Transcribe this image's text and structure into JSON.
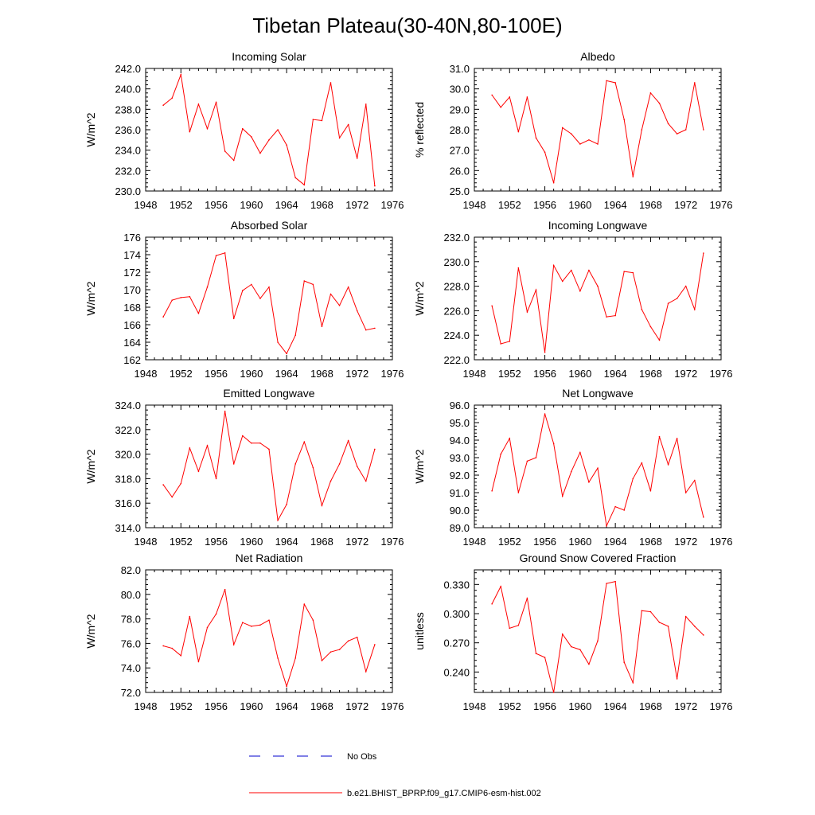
{
  "figure": {
    "title": "Tibetan Plateau(30-40N,80-100E)"
  },
  "legend": {
    "items": [
      {
        "label": "No Obs",
        "color": "#0000cc",
        "dash": "dashed"
      },
      {
        "label": "b.e21.BHIST_BPRP.f09_g17.CMIP6-esm-hist.002",
        "color": "#ff0000",
        "dash": "solid"
      }
    ]
  },
  "chart_data": [
    {
      "type": "line",
      "title": "Incoming Solar",
      "xlabel": "",
      "ylabel": "W/m^2",
      "xlim": [
        1948,
        1976
      ],
      "ylim": [
        230,
        242
      ],
      "xticks": [
        1948,
        1952,
        1956,
        1960,
        1964,
        1968,
        1972,
        1976
      ],
      "yticks": [
        "230.0",
        "232.0",
        "234.0",
        "236.0",
        "238.0",
        "240.0",
        "242.0"
      ],
      "series": [
        {
          "name": "b.e21.BHIST_BPRP.f09_g17.CMIP6-esm-hist.002",
          "color": "#ff0000",
          "x": [
            1950,
            1951,
            1952,
            1953,
            1954,
            1955,
            1956,
            1957,
            1958,
            1959,
            1960,
            1961,
            1962,
            1963,
            1964,
            1965,
            1966,
            1967,
            1968,
            1969,
            1970,
            1971,
            1972,
            1973,
            1974
          ],
          "values": [
            238.4,
            239.1,
            241.4,
            235.8,
            238.5,
            236.1,
            238.7,
            233.9,
            233.0,
            236.1,
            235.3,
            233.7,
            235.0,
            236.0,
            234.5,
            231.3,
            230.6,
            237.0,
            236.9,
            240.6,
            235.2,
            236.5,
            233.2,
            238.5,
            230.5
          ]
        }
      ]
    },
    {
      "type": "line",
      "title": "Albedo",
      "xlabel": "",
      "ylabel": "% reflected",
      "xlim": [
        1948,
        1976
      ],
      "ylim": [
        25,
        31
      ],
      "xticks": [
        1948,
        1952,
        1956,
        1960,
        1964,
        1968,
        1972,
        1976
      ],
      "yticks": [
        "25.0",
        "26.0",
        "27.0",
        "28.0",
        "29.0",
        "30.0",
        "31.0"
      ],
      "series": [
        {
          "name": "b.e21.BHIST_BPRP.f09_g17.CMIP6-esm-hist.002",
          "color": "#ff0000",
          "x": [
            1950,
            1951,
            1952,
            1953,
            1954,
            1955,
            1956,
            1957,
            1958,
            1959,
            1960,
            1961,
            1962,
            1963,
            1964,
            1965,
            1966,
            1967,
            1968,
            1969,
            1970,
            1971,
            1972,
            1973,
            1974
          ],
          "values": [
            29.7,
            29.1,
            29.6,
            27.9,
            29.6,
            27.6,
            26.9,
            25.4,
            28.1,
            27.8,
            27.3,
            27.5,
            27.3,
            30.4,
            30.3,
            28.5,
            25.7,
            28.0,
            29.8,
            29.3,
            28.3,
            27.8,
            28.0,
            30.3,
            28.0
          ]
        }
      ]
    },
    {
      "type": "line",
      "title": "Absorbed Solar",
      "xlabel": "",
      "ylabel": "W/m^2",
      "xlim": [
        1948,
        1976
      ],
      "ylim": [
        162,
        176
      ],
      "xticks": [
        1948,
        1952,
        1956,
        1960,
        1964,
        1968,
        1972,
        1976
      ],
      "yticks": [
        "162",
        "164",
        "166",
        "168",
        "170",
        "172",
        "174",
        "176"
      ],
      "series": [
        {
          "name": "b.e21.BHIST_BPRP.f09_g17.CMIP6-esm-hist.002",
          "color": "#ff0000",
          "x": [
            1950,
            1951,
            1952,
            1953,
            1954,
            1955,
            1956,
            1957,
            1958,
            1959,
            1960,
            1961,
            1962,
            1963,
            1964,
            1965,
            1966,
            1967,
            1968,
            1969,
            1970,
            1971,
            1972,
            1973,
            1974
          ],
          "values": [
            166.9,
            168.8,
            169.1,
            169.2,
            167.3,
            170.3,
            173.9,
            174.2,
            166.7,
            169.9,
            170.6,
            169.0,
            170.3,
            164.0,
            162.7,
            164.8,
            171.0,
            170.6,
            165.8,
            169.5,
            168.2,
            170.3,
            167.6,
            165.4,
            165.6
          ]
        }
      ]
    },
    {
      "type": "line",
      "title": "Incoming Longwave",
      "xlabel": "",
      "ylabel": "W/m^2",
      "xlim": [
        1948,
        1976
      ],
      "ylim": [
        222,
        232
      ],
      "xticks": [
        1948,
        1952,
        1956,
        1960,
        1964,
        1968,
        1972,
        1976
      ],
      "yticks": [
        "222.0",
        "224.0",
        "226.0",
        "228.0",
        "230.0",
        "232.0"
      ],
      "series": [
        {
          "name": "b.e21.BHIST_BPRP.f09_g17.CMIP6-esm-hist.002",
          "color": "#ff0000",
          "x": [
            1950,
            1951,
            1952,
            1953,
            1954,
            1955,
            1956,
            1957,
            1958,
            1959,
            1960,
            1961,
            1962,
            1963,
            1964,
            1965,
            1966,
            1967,
            1968,
            1969,
            1970,
            1971,
            1972,
            1973,
            1974
          ],
          "values": [
            226.4,
            223.3,
            223.5,
            229.5,
            225.9,
            227.7,
            222.6,
            229.7,
            228.4,
            229.3,
            227.6,
            229.3,
            228.0,
            225.5,
            225.6,
            229.2,
            229.1,
            226.1,
            224.7,
            223.6,
            226.6,
            227.0,
            228.0,
            226.1,
            230.7
          ]
        }
      ]
    },
    {
      "type": "line",
      "title": "Emitted Longwave",
      "xlabel": "",
      "ylabel": "W/m^2",
      "xlim": [
        1948,
        1976
      ],
      "ylim": [
        314,
        324
      ],
      "xticks": [
        1948,
        1952,
        1956,
        1960,
        1964,
        1968,
        1972,
        1976
      ],
      "yticks": [
        "314.0",
        "316.0",
        "318.0",
        "320.0",
        "322.0",
        "324.0"
      ],
      "series": [
        {
          "name": "b.e21.BHIST_BPRP.f09_g17.CMIP6-esm-hist.002",
          "color": "#ff0000",
          "x": [
            1950,
            1951,
            1952,
            1953,
            1954,
            1955,
            1956,
            1957,
            1958,
            1959,
            1960,
            1961,
            1962,
            1963,
            1964,
            1965,
            1966,
            1967,
            1968,
            1969,
            1970,
            1971,
            1972,
            1973,
            1974
          ],
          "values": [
            317.5,
            316.5,
            317.6,
            320.5,
            318.6,
            320.7,
            318.0,
            323.5,
            319.2,
            321.5,
            320.9,
            320.9,
            320.4,
            314.6,
            315.9,
            319.2,
            321.0,
            318.9,
            315.8,
            317.8,
            319.2,
            321.1,
            319.0,
            317.8,
            320.4
          ]
        }
      ]
    },
    {
      "type": "line",
      "title": "Net Longwave",
      "xlabel": "",
      "ylabel": "W/m^2",
      "xlim": [
        1948,
        1976
      ],
      "ylim": [
        89,
        96
      ],
      "xticks": [
        1948,
        1952,
        1956,
        1960,
        1964,
        1968,
        1972,
        1976
      ],
      "yticks": [
        "89.0",
        "90.0",
        "91.0",
        "92.0",
        "93.0",
        "94.0",
        "95.0",
        "96.0"
      ],
      "series": [
        {
          "name": "b.e21.BHIST_BPRP.f09_g17.CMIP6-esm-hist.002",
          "color": "#ff0000",
          "x": [
            1950,
            1951,
            1952,
            1953,
            1954,
            1955,
            1956,
            1957,
            1958,
            1959,
            1960,
            1961,
            1962,
            1963,
            1964,
            1965,
            1966,
            1967,
            1968,
            1969,
            1970,
            1971,
            1972,
            1973,
            1974
          ],
          "values": [
            91.1,
            93.2,
            94.1,
            91.0,
            92.8,
            93.0,
            95.5,
            93.8,
            90.8,
            92.2,
            93.3,
            91.6,
            92.4,
            89.1,
            90.2,
            90.0,
            91.8,
            92.7,
            91.1,
            94.2,
            92.6,
            94.1,
            91.0,
            91.7,
            89.6
          ]
        }
      ]
    },
    {
      "type": "line",
      "title": "Net Radiation",
      "xlabel": "",
      "ylabel": "W/m^2",
      "xlim": [
        1948,
        1976
      ],
      "ylim": [
        72,
        82
      ],
      "xticks": [
        1948,
        1952,
        1956,
        1960,
        1964,
        1968,
        1972,
        1976
      ],
      "yticks": [
        "72.0",
        "74.0",
        "76.0",
        "78.0",
        "80.0",
        "82.0"
      ],
      "series": [
        {
          "name": "b.e21.BHIST_BPRP.f09_g17.CMIP6-esm-hist.002",
          "color": "#ff0000",
          "x": [
            1950,
            1951,
            1952,
            1953,
            1954,
            1955,
            1956,
            1957,
            1958,
            1959,
            1960,
            1961,
            1962,
            1963,
            1964,
            1965,
            1966,
            1967,
            1968,
            1969,
            1970,
            1971,
            1972,
            1973,
            1974
          ],
          "values": [
            75.8,
            75.6,
            75.0,
            78.2,
            74.5,
            77.3,
            78.4,
            80.4,
            75.9,
            77.7,
            77.4,
            77.5,
            77.9,
            74.8,
            72.5,
            74.8,
            79.2,
            77.9,
            74.6,
            75.3,
            75.5,
            76.2,
            76.5,
            73.7,
            75.9
          ]
        }
      ]
    },
    {
      "type": "line",
      "title": "Ground Snow Covered Fraction",
      "xlabel": "",
      "ylabel": "unitless",
      "xlim": [
        1948,
        1976
      ],
      "ylim": [
        0.219,
        0.345
      ],
      "xticks": [
        1948,
        1952,
        1956,
        1960,
        1964,
        1968,
        1972,
        1976
      ],
      "yticks": [
        "0.240",
        "0.270",
        "0.300",
        "0.330"
      ],
      "series": [
        {
          "name": "b.e21.BHIST_BPRP.f09_g17.CMIP6-esm-hist.002",
          "color": "#ff0000",
          "x": [
            1950,
            1951,
            1952,
            1953,
            1954,
            1955,
            1956,
            1957,
            1958,
            1959,
            1960,
            1961,
            1962,
            1963,
            1964,
            1965,
            1966,
            1967,
            1968,
            1969,
            1970,
            1971,
            1972,
            1973,
            1974
          ],
          "values": [
            0.31,
            0.328,
            0.285,
            0.288,
            0.316,
            0.259,
            0.255,
            0.219,
            0.279,
            0.266,
            0.263,
            0.248,
            0.272,
            0.331,
            0.333,
            0.25,
            0.229,
            0.303,
            0.302,
            0.291,
            0.287,
            0.233,
            0.297,
            0.287,
            0.278
          ]
        }
      ]
    }
  ]
}
